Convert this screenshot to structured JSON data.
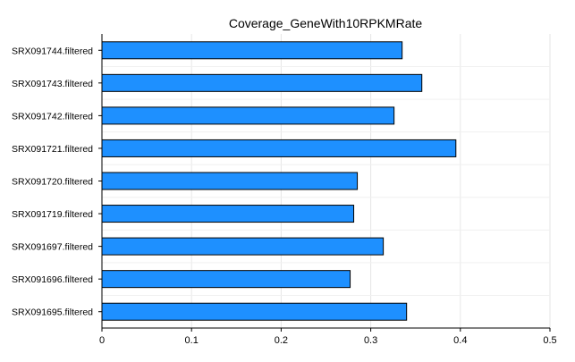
{
  "chart_data": {
    "type": "bar",
    "orientation": "horizontal",
    "title": "Coverage_GeneWith10RPKMRate",
    "xlabel": "",
    "ylabel": "",
    "categories": [
      "SRX091744.filtered",
      "SRX091743.filtered",
      "SRX091742.filtered",
      "SRX091721.filtered",
      "SRX091720.filtered",
      "SRX091719.filtered",
      "SRX091697.filtered",
      "SRX091696.filtered",
      "SRX091695.filtered"
    ],
    "values": [
      0.335,
      0.357,
      0.326,
      0.395,
      0.285,
      0.281,
      0.314,
      0.277,
      0.34
    ],
    "xlim": [
      0,
      0.5
    ],
    "xticks": [
      "0",
      "0.1",
      "0.2",
      "0.3",
      "0.4",
      "0.5"
    ],
    "grid": true,
    "legend": "none",
    "bar_color": "#1E90FF",
    "bar_edge_color": "#000000"
  }
}
